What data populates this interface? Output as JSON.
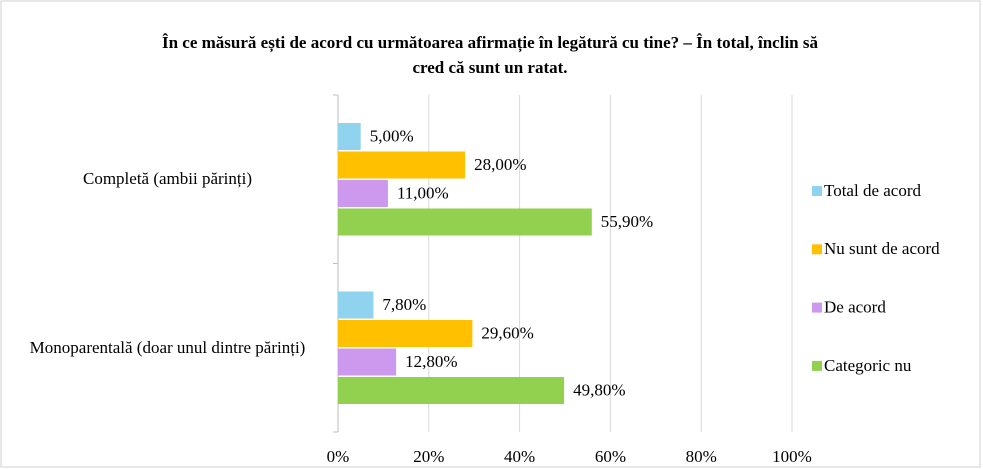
{
  "chart_data": {
    "type": "bar",
    "orientation": "horizontal",
    "title": "În ce măsură ești de acord cu următoarea afirmație în legătură cu tine? – În total, înclin să cred că sunt un ratat.",
    "categories": [
      "Completă (ambii părinți)",
      "Monoparentală (doar unul dintre părinți)"
    ],
    "series": [
      {
        "name": "Total de acord",
        "color": "#8fd3ee",
        "values": [
          5,
          7.8
        ],
        "value_labels": [
          "5,00%",
          "7,80%"
        ]
      },
      {
        "name": "Nu sunt de acord",
        "color": "#ffc000",
        "values": [
          28,
          29.6
        ],
        "value_labels": [
          "28,00%",
          "29,60%"
        ]
      },
      {
        "name": "De acord",
        "color": "#cc99ee",
        "values": [
          11,
          12.8
        ],
        "value_labels": [
          "11,00%",
          "12,80%"
        ]
      },
      {
        "name": "Categoric nu",
        "color": "#92d050",
        "values": [
          55.9,
          49.8
        ],
        "value_labels": [
          "55,90%",
          "49,80%"
        ]
      }
    ],
    "xlim": [
      0,
      100
    ],
    "xticks": [
      {
        "value": 0,
        "label": "0%"
      },
      {
        "value": 20,
        "label": "20%"
      },
      {
        "value": 40,
        "label": "40%"
      },
      {
        "value": 60,
        "label": "60%"
      },
      {
        "value": 80,
        "label": "80%"
      },
      {
        "value": 100,
        "label": "100%"
      }
    ],
    "grid": true,
    "legend": "right"
  }
}
